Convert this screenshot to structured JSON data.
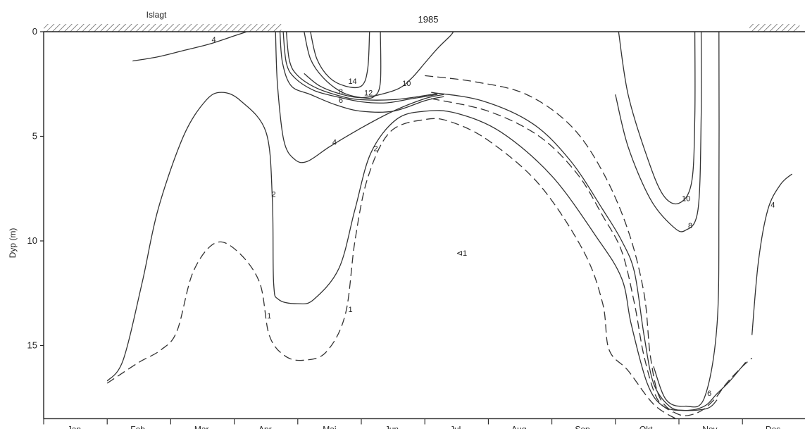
{
  "chart_data": {
    "type": "contour",
    "year_label": "1985",
    "ice_label": "Islagt",
    "ylabel": "Dyp (m)",
    "y_ticks": [
      0,
      5,
      10,
      15
    ],
    "y_tick_labels": [
      "0",
      "5",
      "10",
      "15"
    ],
    "ylim": [
      0,
      18.5
    ],
    "months": [
      "Jan.",
      "Feb.",
      "Mar.",
      "Apr.",
      "Mai",
      "Jun.",
      "Jul.",
      "Aug.",
      "Sep.",
      "Okt.",
      "Nov.",
      "Des."
    ],
    "ice_periods": [
      {
        "start_month": 0.0,
        "end_month": 3.74
      },
      {
        "start_month": 11.11,
        "end_month": 11.9
      }
    ],
    "colors": {
      "line": "#333333",
      "axis": "#222222",
      "hatch": "#555555"
    },
    "isolines": [
      {
        "label": "4",
        "style": "solid",
        "points": [
          [
            1.4,
            1.4
          ],
          [
            1.8,
            1.2
          ],
          [
            2.2,
            0.9
          ],
          [
            2.6,
            0.6
          ],
          [
            3.0,
            0.2
          ],
          [
            3.2,
            0.0
          ]
        ]
      },
      {
        "label": "1",
        "style": "dashed",
        "points": [
          [
            1.0,
            16.8
          ],
          [
            1.15,
            16.5
          ],
          [
            1.5,
            15.8
          ],
          [
            1.85,
            15.2
          ],
          [
            2.1,
            14.3
          ],
          [
            2.35,
            11.5
          ],
          [
            2.7,
            10.1
          ],
          [
            3.05,
            10.5
          ],
          [
            3.4,
            12.0
          ],
          [
            3.55,
            14.5
          ],
          [
            3.8,
            15.5
          ],
          [
            4.1,
            15.7
          ],
          [
            4.45,
            15.3
          ],
          [
            4.75,
            13.5
          ],
          [
            4.9,
            10.0
          ],
          [
            5.1,
            7.0
          ],
          [
            5.45,
            4.8
          ],
          [
            6.0,
            4.2
          ],
          [
            6.4,
            4.3
          ],
          [
            7.0,
            5.2
          ],
          [
            7.8,
            7.3
          ],
          [
            8.5,
            10.5
          ],
          [
            8.8,
            13.0
          ],
          [
            8.9,
            15.2
          ],
          [
            9.2,
            16.2
          ],
          [
            9.6,
            17.8
          ],
          [
            9.95,
            18.5
          ]
        ]
      },
      {
        "label": "2",
        "style": "solid",
        "points": [
          [
            1.0,
            16.7
          ],
          [
            1.25,
            15.7
          ],
          [
            1.55,
            12.0
          ],
          [
            1.8,
            8.5
          ],
          [
            2.2,
            5.0
          ],
          [
            2.55,
            3.3
          ],
          [
            2.8,
            2.9
          ],
          [
            3.1,
            3.3
          ],
          [
            3.5,
            4.8
          ],
          [
            3.6,
            8.0
          ],
          [
            3.62,
            12.0
          ],
          [
            3.7,
            12.8
          ],
          [
            4.0,
            13.0
          ],
          [
            4.25,
            12.8
          ],
          [
            4.65,
            11.3
          ],
          [
            4.9,
            8.5
          ],
          [
            5.15,
            5.8
          ],
          [
            5.55,
            4.2
          ],
          [
            6.0,
            3.8
          ],
          [
            6.5,
            3.9
          ],
          [
            7.2,
            4.8
          ],
          [
            8.0,
            6.9
          ],
          [
            8.7,
            9.8
          ],
          [
            9.1,
            11.8
          ],
          [
            9.25,
            14.0
          ],
          [
            9.5,
            16.8
          ],
          [
            9.75,
            17.9
          ],
          [
            10.1,
            18.1
          ],
          [
            10.4,
            17.9
          ],
          [
            10.6,
            17.3
          ],
          [
            10.8,
            16.7
          ],
          [
            11.05,
            15.8
          ]
        ]
      },
      {
        "label": "",
        "style": "dashed",
        "points": [
          [
            6.0,
            2.1
          ],
          [
            6.8,
            2.4
          ],
          [
            7.6,
            3.0
          ],
          [
            8.3,
            4.5
          ],
          [
            8.8,
            6.7
          ],
          [
            9.2,
            9.5
          ],
          [
            9.45,
            12.5
          ],
          [
            9.55,
            15.5
          ],
          [
            9.7,
            17.5
          ],
          [
            10.0,
            18.3
          ],
          [
            10.3,
            18.2
          ],
          [
            10.55,
            17.6
          ],
          [
            10.75,
            16.8
          ],
          [
            11.0,
            16.0
          ],
          [
            11.15,
            15.6
          ]
        ]
      },
      {
        "label": "",
        "style": "solid",
        "points": [
          [
            6.1,
            2.9
          ],
          [
            6.9,
            3.3
          ],
          [
            7.7,
            4.4
          ],
          [
            8.3,
            6.2
          ],
          [
            8.8,
            8.5
          ],
          [
            9.1,
            10.0
          ],
          [
            9.3,
            11.5
          ],
          [
            9.45,
            14.5
          ],
          [
            9.6,
            16.8
          ],
          [
            9.85,
            17.9
          ],
          [
            10.1,
            18.1
          ],
          [
            10.45,
            18.0
          ],
          [
            10.6,
            17.6
          ]
        ]
      },
      {
        "label": "",
        "style": "dashed",
        "points": [
          [
            6.1,
            3.2
          ],
          [
            7.0,
            3.8
          ],
          [
            7.8,
            5.0
          ],
          [
            8.4,
            6.8
          ],
          [
            8.8,
            8.8
          ],
          [
            9.1,
            10.5
          ],
          [
            9.3,
            13.0
          ],
          [
            9.45,
            15.5
          ],
          [
            9.65,
            17.5
          ],
          [
            9.9,
            18.2
          ]
        ]
      },
      {
        "label": "4",
        "style": "solid",
        "points": [
          [
            3.65,
            0.0
          ],
          [
            3.68,
            2.5
          ],
          [
            3.78,
            5.2
          ],
          [
            3.95,
            6.1
          ],
          [
            4.15,
            6.2
          ],
          [
            4.5,
            5.5
          ],
          [
            5.0,
            4.6
          ],
          [
            5.5,
            3.8
          ],
          [
            6.0,
            3.2
          ],
          [
            6.3,
            3.0
          ]
        ]
      },
      {
        "label": "6",
        "style": "solid",
        "points": [
          [
            3.72,
            0.0
          ],
          [
            3.76,
            1.5
          ],
          [
            3.9,
            2.6
          ],
          [
            4.2,
            3.0
          ],
          [
            4.6,
            3.5
          ],
          [
            5.0,
            3.8
          ],
          [
            5.5,
            3.8
          ],
          [
            6.0,
            3.3
          ],
          [
            6.3,
            3.1
          ]
        ]
      },
      {
        "label": "8",
        "style": "solid",
        "points": [
          [
            3.77,
            0.0
          ],
          [
            3.82,
            1.5
          ],
          [
            3.95,
            2.2
          ],
          [
            4.25,
            2.8
          ],
          [
            4.6,
            3.1
          ],
          [
            5.0,
            3.35
          ],
          [
            5.4,
            3.4
          ],
          [
            5.8,
            3.2
          ],
          [
            6.2,
            3.0
          ]
        ]
      },
      {
        "label": "",
        "style": "solid",
        "points": [
          [
            3.82,
            0.0
          ],
          [
            3.87,
            1.4
          ],
          [
            4.0,
            2.1
          ],
          [
            4.3,
            2.7
          ],
          [
            4.7,
            3.1
          ],
          [
            5.0,
            3.25
          ],
          [
            5.5,
            3.25
          ],
          [
            5.9,
            3.1
          ],
          [
            6.2,
            2.95
          ]
        ]
      },
      {
        "label": "10",
        "style": "solid",
        "points": [
          [
            4.1,
            2.0
          ],
          [
            4.35,
            2.6
          ],
          [
            4.7,
            3.0
          ],
          [
            5.0,
            3.15
          ],
          [
            5.3,
            3.0
          ],
          [
            5.6,
            2.7
          ],
          [
            5.8,
            2.2
          ],
          [
            6.0,
            1.5
          ],
          [
            6.2,
            0.8
          ],
          [
            6.4,
            0.2
          ],
          [
            6.45,
            0.0
          ]
        ]
      },
      {
        "label": "12",
        "style": "solid",
        "points": [
          [
            4.1,
            0.0
          ],
          [
            4.2,
            1.3
          ],
          [
            4.4,
            2.2
          ],
          [
            4.7,
            2.9
          ],
          [
            5.0,
            3.15
          ],
          [
            5.2,
            3.1
          ],
          [
            5.3,
            2.4
          ],
          [
            5.3,
            0.0
          ]
        ]
      },
      {
        "label": "14",
        "style": "solid",
        "points": [
          [
            4.2,
            0.0
          ],
          [
            4.3,
            1.3
          ],
          [
            4.5,
            2.2
          ],
          [
            4.75,
            2.6
          ],
          [
            5.0,
            2.6
          ],
          [
            5.1,
            1.8
          ],
          [
            5.13,
            0.0
          ]
        ]
      },
      {
        "label": "10",
        "style": "solid",
        "points": [
          [
            9.05,
            0.0
          ],
          [
            9.2,
            3.0
          ],
          [
            9.5,
            6.0
          ],
          [
            9.75,
            7.8
          ],
          [
            10.0,
            8.2
          ],
          [
            10.2,
            7.2
          ],
          [
            10.25,
            4.0
          ],
          [
            10.25,
            0.0
          ]
        ]
      },
      {
        "label": "8",
        "style": "solid",
        "points": [
          [
            9.0,
            3.0
          ],
          [
            9.2,
            5.5
          ],
          [
            9.55,
            8.0
          ],
          [
            9.9,
            9.3
          ],
          [
            10.1,
            9.5
          ],
          [
            10.3,
            8.5
          ],
          [
            10.35,
            4.0
          ],
          [
            10.35,
            0.0
          ]
        ]
      },
      {
        "label": "6",
        "style": "solid",
        "points": [
          [
            9.6,
            16.0
          ],
          [
            9.8,
            17.6
          ],
          [
            10.1,
            17.9
          ],
          [
            10.4,
            17.5
          ],
          [
            10.6,
            14.0
          ],
          [
            10.63,
            8.0
          ],
          [
            10.63,
            0.0
          ]
        ]
      },
      {
        "label": "4",
        "style": "solid",
        "points": [
          [
            11.15,
            14.5
          ],
          [
            11.25,
            11.0
          ],
          [
            11.4,
            8.5
          ],
          [
            11.6,
            7.3
          ],
          [
            11.78,
            6.8
          ]
        ]
      }
    ],
    "annotations": [
      {
        "text": "1",
        "x": 3.55,
        "y": 13.7
      },
      {
        "text": "2",
        "x": 3.62,
        "y": 7.9
      },
      {
        "text": "⊲1",
        "x": 6.58,
        "y": 10.7
      }
    ]
  }
}
